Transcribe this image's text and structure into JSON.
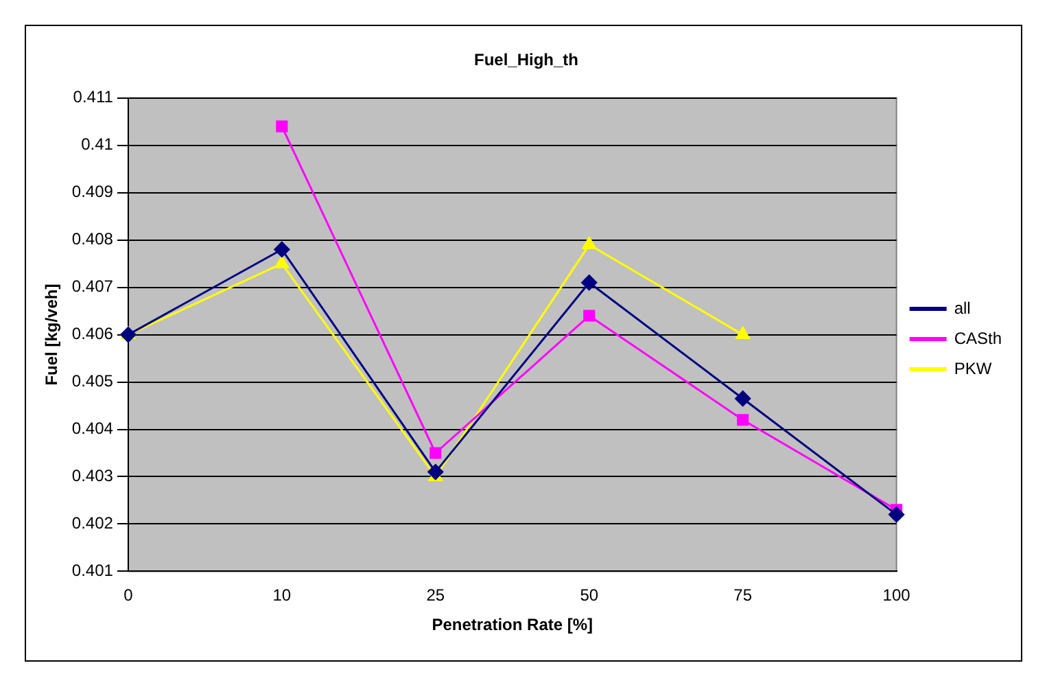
{
  "chart_data": {
    "type": "line",
    "title": "Fuel_High_th",
    "xlabel": "Penetration Rate [%]",
    "ylabel": "Fuel [kg/veh]",
    "categories": [
      "0",
      "10",
      "25",
      "50",
      "75",
      "100"
    ],
    "series": [
      {
        "name": "all",
        "color": "#000080",
        "marker": "diamond",
        "values": [
          0.406,
          0.4078,
          0.4031,
          0.4071,
          0.40465,
          0.4022
        ]
      },
      {
        "name": "CASth",
        "color": "#ff00ff",
        "marker": "square",
        "values": [
          null,
          0.4104,
          0.4035,
          0.4064,
          0.4042,
          0.4023
        ]
      },
      {
        "name": "PKW",
        "color": "#ffff00",
        "marker": "triangle",
        "values": [
          0.406,
          0.4075,
          0.403,
          0.4079,
          0.406,
          null
        ]
      }
    ],
    "ylim": [
      0.401,
      0.411
    ],
    "yticks": [
      0.401,
      0.402,
      0.403,
      0.404,
      0.405,
      0.406,
      0.407,
      0.408,
      0.409,
      0.41,
      0.411
    ],
    "grid": "y",
    "legend": "right"
  }
}
